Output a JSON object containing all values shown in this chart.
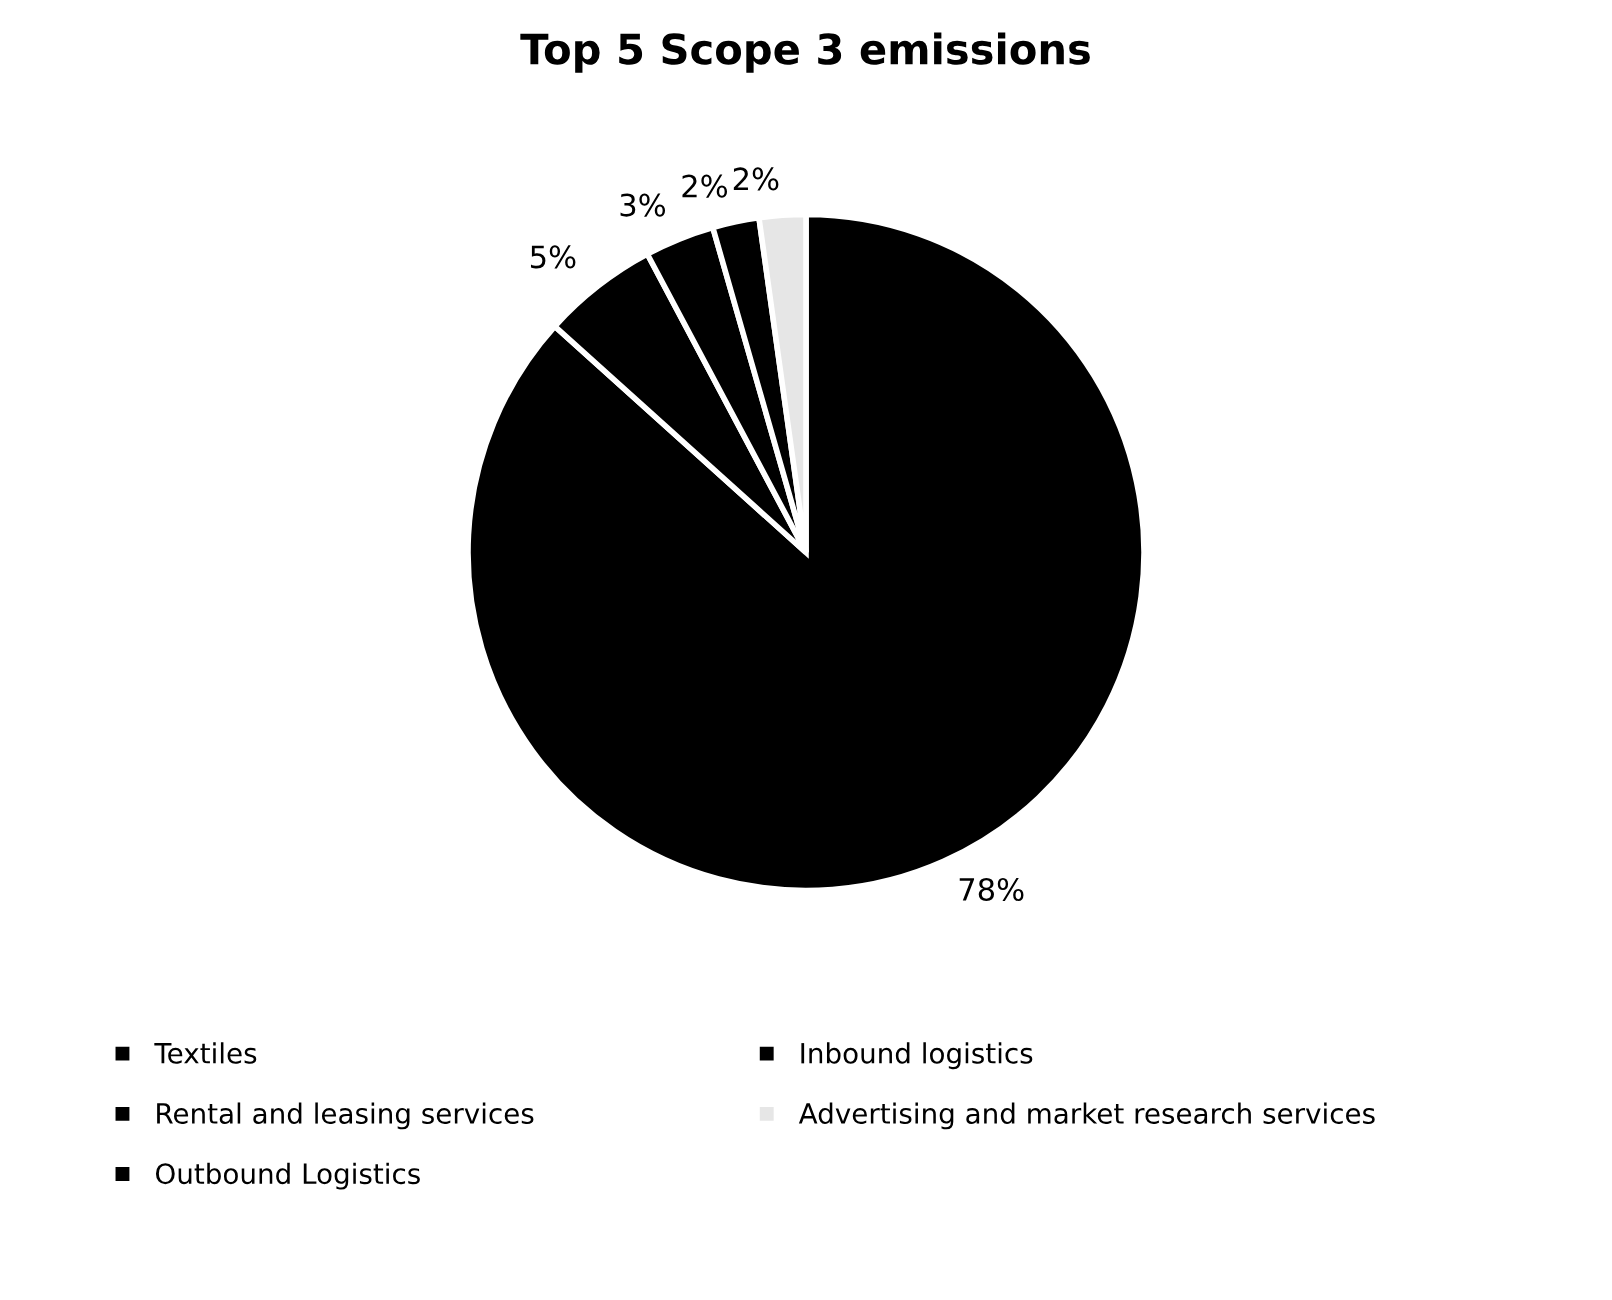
{
  "chart_data": {
    "type": "pie",
    "title": "Top 5 Scope 3 emissions",
    "categories": [
      "Textiles",
      "Rental and leasing services",
      "Outbound Logistics",
      "Inbound logistics",
      "Advertising and market research services"
    ],
    "values": [
      78,
      5,
      3,
      2,
      2
    ],
    "colors": [
      "#000000",
      "#000000",
      "#000000",
      "#000000",
      "#e6e6e6"
    ],
    "value_labels": [
      "78%",
      "5%",
      "3%",
      "2%",
      "2%"
    ],
    "legend": "bottom"
  }
}
